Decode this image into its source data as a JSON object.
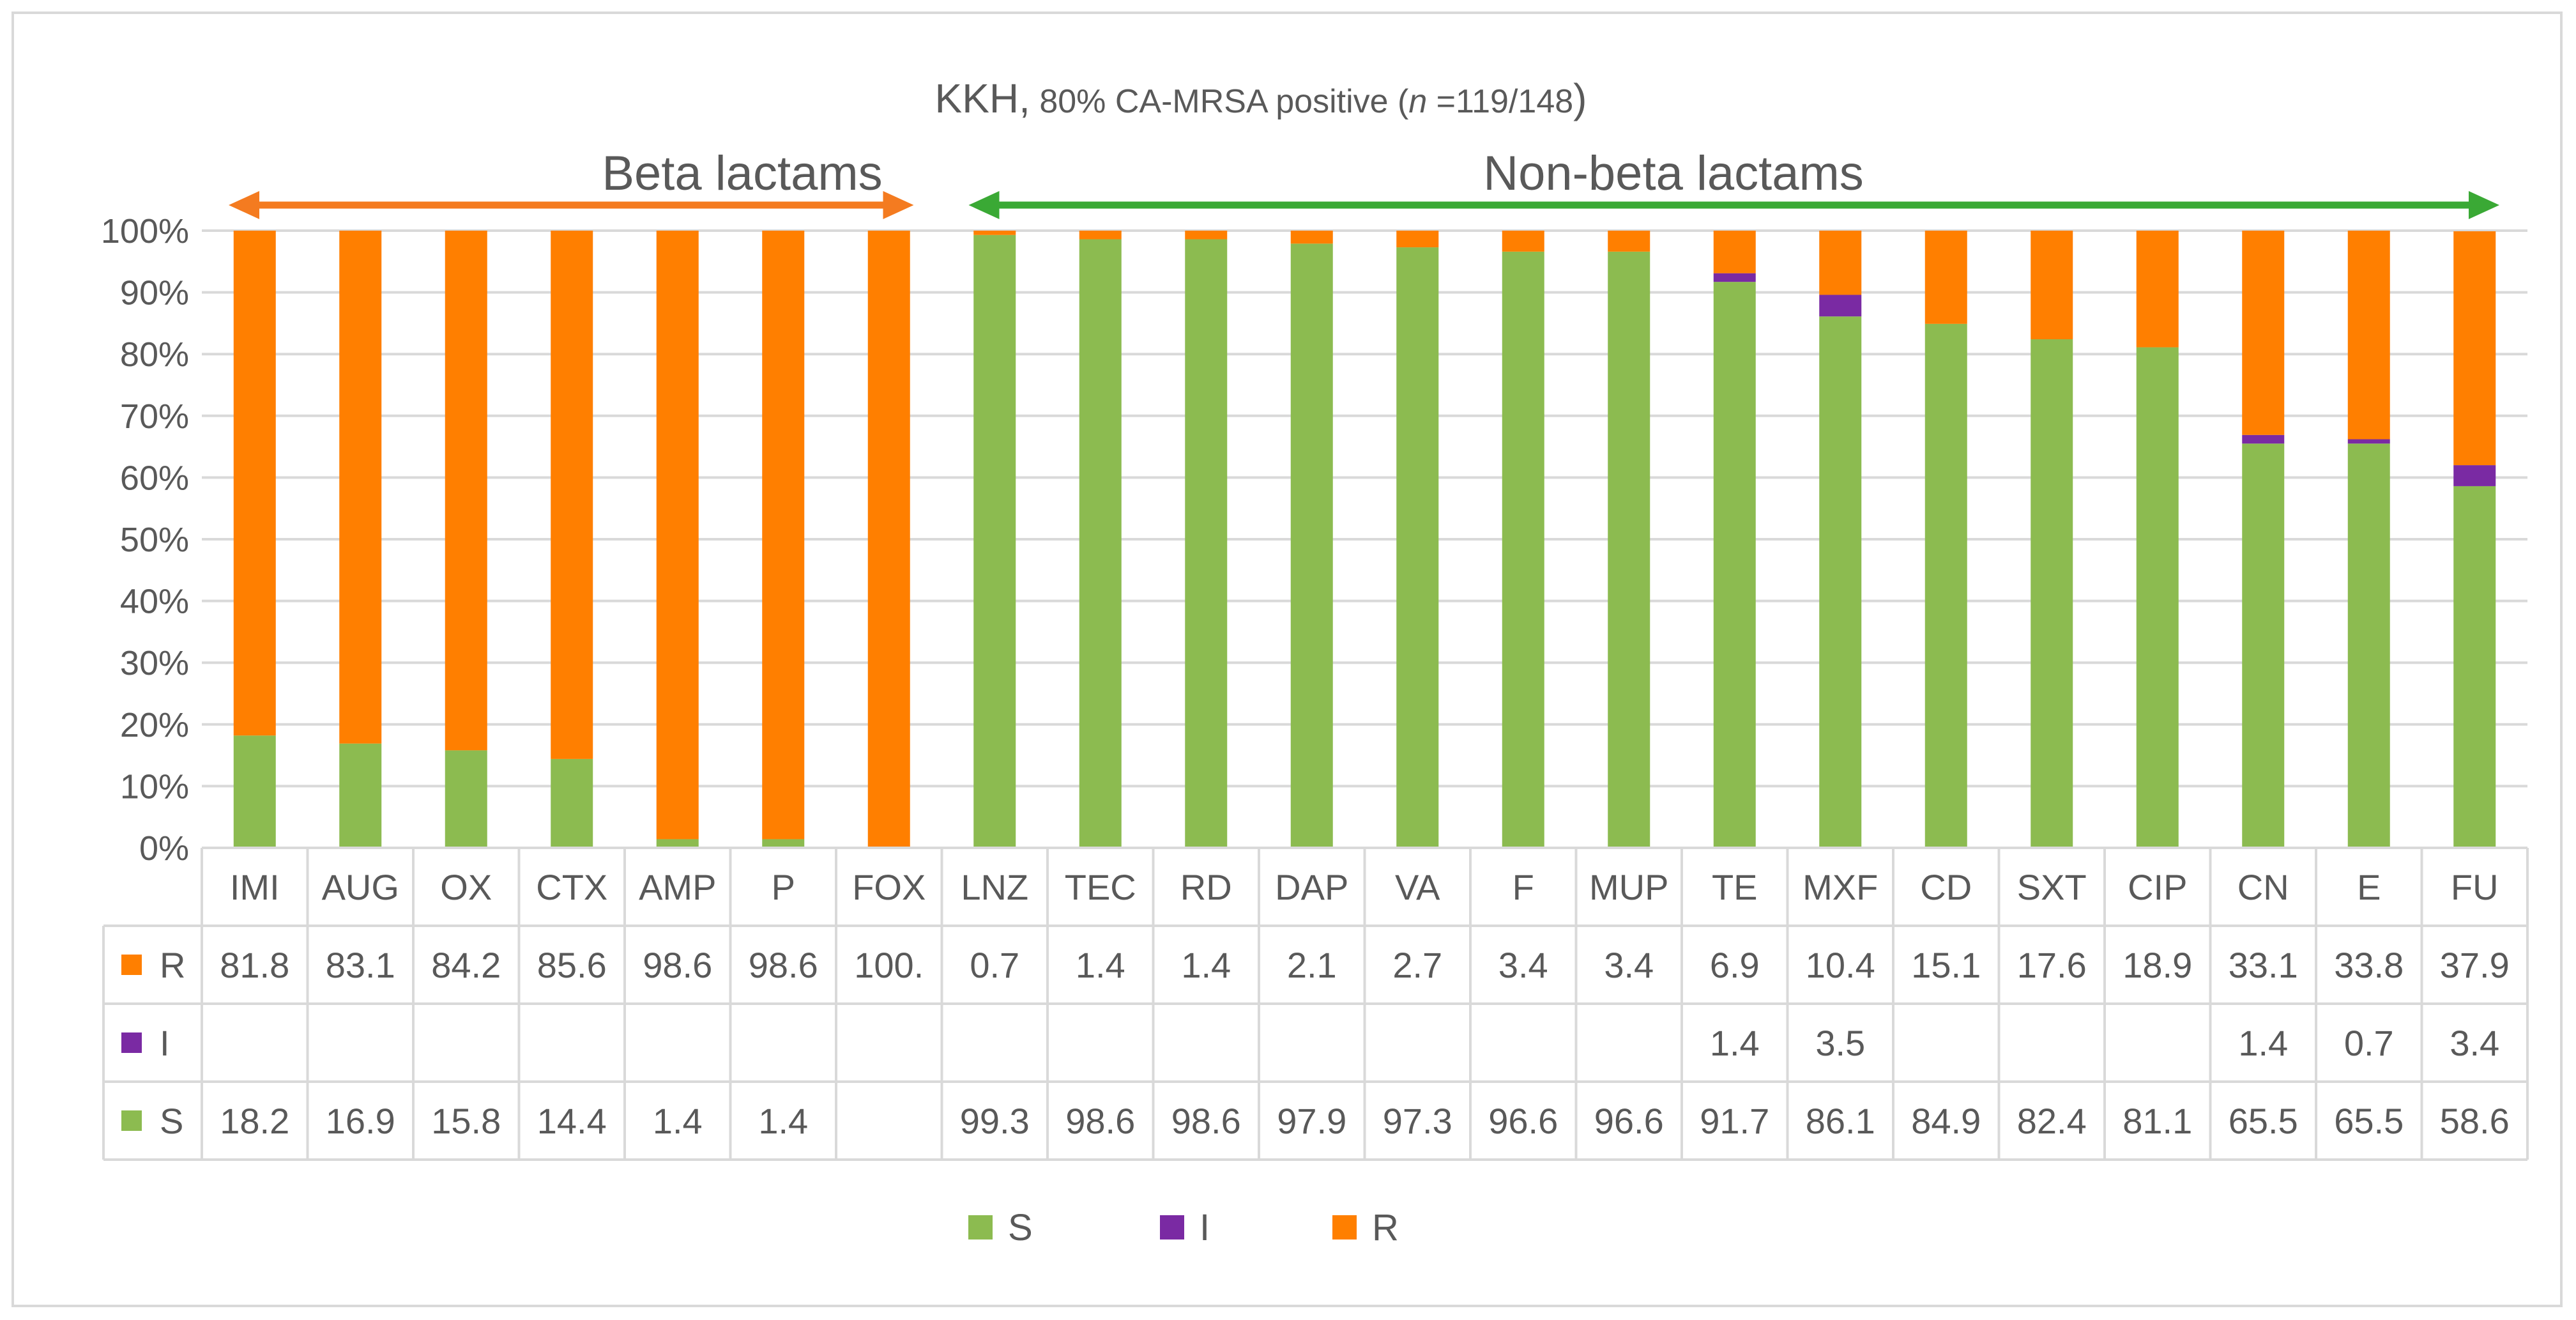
{
  "chart_data": {
    "type": "bar",
    "stacked": true,
    "percent_stacked": true,
    "title": {
      "prefix": "KKH,",
      "mid": " 80% CA-MRSA positive (",
      "n_italic": "n",
      "suffix": " =119/148",
      "close": ")"
    },
    "groups": [
      {
        "label": "Beta lactams",
        "color": "#f47b20",
        "from": "IMI",
        "to": "FOX"
      },
      {
        "label": "Non-beta lactams",
        "color": "#3aa935",
        "from": "LNZ",
        "to": "FU"
      }
    ],
    "yticks": [
      "0%",
      "10%",
      "20%",
      "30%",
      "40%",
      "50%",
      "60%",
      "70%",
      "80%",
      "90%",
      "100%"
    ],
    "ylim": [
      0,
      100
    ],
    "categories": [
      "IMI",
      "AUG",
      "OX",
      "CTX",
      "AMP",
      "P",
      "FOX",
      "LNZ",
      "TEC",
      "RD",
      "DAP",
      "VA",
      "F",
      "MUP",
      "TE",
      "MXF",
      "CD",
      "SXT",
      "CIP",
      "CN",
      "E",
      "FU"
    ],
    "series": [
      {
        "name": "S",
        "color": "#8cbb50",
        "values": [
          18.2,
          16.9,
          15.8,
          14.4,
          1.4,
          1.4,
          0,
          99.3,
          98.6,
          98.6,
          97.9,
          97.3,
          96.6,
          96.6,
          91.7,
          86.1,
          84.9,
          82.4,
          81.1,
          65.5,
          65.5,
          58.6
        ]
      },
      {
        "name": "I",
        "color": "#7a2aa3",
        "values": [
          0,
          0,
          0,
          0,
          0,
          0,
          0,
          0,
          0,
          0,
          0,
          0,
          0,
          0,
          1.4,
          3.5,
          0,
          0,
          0,
          1.4,
          0.7,
          3.4
        ]
      },
      {
        "name": "R",
        "color": "#ff7f00",
        "values": [
          81.8,
          83.1,
          84.2,
          85.6,
          98.6,
          98.6,
          100,
          0.7,
          1.4,
          1.4,
          2.1,
          2.7,
          3.4,
          3.4,
          6.9,
          10.4,
          15.1,
          17.6,
          18.9,
          33.1,
          33.8,
          37.9
        ]
      }
    ],
    "table": {
      "row_order": [
        "R",
        "I",
        "S"
      ],
      "rows": {
        "R": [
          "81.8",
          "83.1",
          "84.2",
          "85.6",
          "98.6",
          "98.6",
          "100.",
          "0.7",
          "1.4",
          "1.4",
          "2.1",
          "2.7",
          "3.4",
          "3.4",
          "6.9",
          "10.4",
          "15.1",
          "17.6",
          "18.9",
          "33.1",
          "33.8",
          "37.9"
        ],
        "I": [
          "",
          "",
          "",
          "",
          "",
          "",
          "",
          "",
          "",
          "",
          "",
          "",
          "",
          "",
          "1.4",
          "3.5",
          "",
          "",
          "",
          "1.4",
          "0.7",
          "3.4"
        ],
        "S": [
          "18.2",
          "16.9",
          "15.8",
          "14.4",
          "1.4",
          "1.4",
          "",
          "99.3",
          "98.6",
          "98.6",
          "97.9",
          "97.3",
          "96.6",
          "96.6",
          "91.7",
          "86.1",
          "84.9",
          "82.4",
          "81.1",
          "65.5",
          "65.5",
          "58.6"
        ]
      }
    },
    "legend": [
      "S",
      "I",
      "R"
    ],
    "legend_position": "bottom",
    "grid": true
  }
}
